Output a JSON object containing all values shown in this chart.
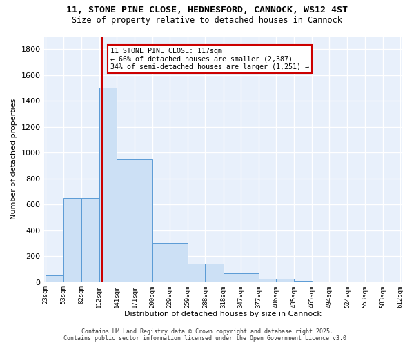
{
  "title1": "11, STONE PINE CLOSE, HEDNESFORD, CANNOCK, WS12 4ST",
  "title2": "Size of property relative to detached houses in Cannock",
  "xlabel": "Distribution of detached houses by size in Cannock",
  "ylabel": "Number of detached properties",
  "bin_edges": [
    23,
    53,
    82,
    112,
    141,
    171,
    200,
    229,
    259,
    288,
    318,
    347,
    377,
    406,
    435,
    465,
    494,
    524,
    553,
    583,
    612
  ],
  "bin_counts": [
    50,
    650,
    650,
    1500,
    950,
    950,
    300,
    300,
    140,
    140,
    70,
    70,
    25,
    25,
    10,
    5,
    5,
    5,
    3,
    3
  ],
  "bar_color": "#cce0f5",
  "bar_edge_color": "#5b9bd5",
  "vline_x": 117,
  "vline_color": "#cc0000",
  "annotation_line1": "11 STONE PINE CLOSE: 117sqm",
  "annotation_line2": "← 66% of detached houses are smaller (2,387)",
  "annotation_line3": "34% of semi-detached houses are larger (1,251) →",
  "annotation_box_color": "#ffffff",
  "annotation_box_edge": "#cc0000",
  "ylim": [
    0,
    1900
  ],
  "yticks": [
    0,
    200,
    400,
    600,
    800,
    1000,
    1200,
    1400,
    1600,
    1800
  ],
  "bg_color": "#e8f0fb",
  "grid_color": "#ffffff",
  "footer_line1": "Contains HM Land Registry data © Crown copyright and database right 2025.",
  "footer_line2": "Contains public sector information licensed under the Open Government Licence v3.0."
}
